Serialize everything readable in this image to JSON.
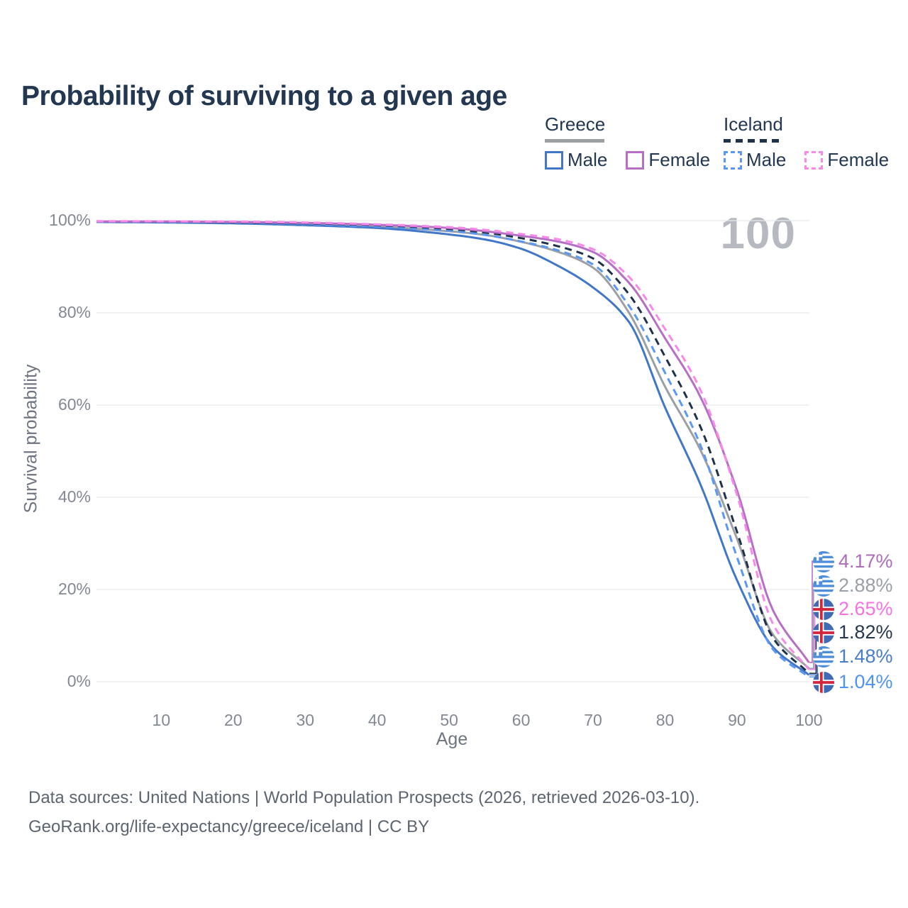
{
  "title": "Probability of surviving to a given age",
  "watermark": "100",
  "legend": {
    "greece": {
      "label": "Greece",
      "male": "Male",
      "female": "Female",
      "line_color": "#9ca0a5",
      "line_style": "solid"
    },
    "iceland": {
      "label": "Iceland",
      "male": "Male",
      "female": "Female",
      "line_color": "#203249",
      "line_style": "dashed"
    }
  },
  "chart_data": {
    "type": "line",
    "title": "Probability of surviving to a given age",
    "xlabel": "Age",
    "ylabel": "Survival probability",
    "xlim": [
      1,
      100
    ],
    "ylim": [
      0,
      100
    ],
    "grid": true,
    "legend_position": "top-right",
    "xtick_values": [
      10,
      20,
      30,
      40,
      50,
      60,
      70,
      80,
      90,
      100
    ],
    "xtick_labels": [
      "10",
      "20",
      "30",
      "40",
      "50",
      "60",
      "70",
      "80",
      "90",
      "100"
    ],
    "ytick_values": [
      0,
      20,
      40,
      60,
      80,
      100
    ],
    "ytick_labels": [
      "0%",
      "20%",
      "40%",
      "60%",
      "80%",
      "100%"
    ],
    "x": [
      1,
      10,
      20,
      30,
      40,
      50,
      55,
      60,
      65,
      70,
      75,
      80,
      85,
      90,
      95,
      100
    ],
    "series": [
      {
        "name": "Greece",
        "flag": "greece",
        "color": "#9ca0a5",
        "dash": false,
        "end_label": "2.88%",
        "label_color": "#9aa0a6",
        "values": [
          99.75,
          99.7,
          99.5,
          99.2,
          98.7,
          97.7,
          96.9,
          95.4,
          93.3,
          89.8,
          80.0,
          64.0,
          50.0,
          31.0,
          10.2,
          2.88
        ]
      },
      {
        "name": "Greece Male",
        "flag": "greece",
        "color": "#4277c7",
        "dash": false,
        "end_label": "1.48%",
        "label_color": "#4a7dc9",
        "values": [
          99.7,
          99.6,
          99.4,
          99.0,
          98.4,
          97.0,
          95.9,
          93.9,
          90.3,
          85.5,
          78.0,
          59.5,
          42.5,
          22.0,
          7.5,
          1.48
        ]
      },
      {
        "name": "Iceland Male",
        "flag": "iceland",
        "color": "#5b97f5",
        "dash": true,
        "end_label": "1.04%",
        "label_color": "#4f93f3",
        "values": [
          99.75,
          99.7,
          99.5,
          99.2,
          98.7,
          97.8,
          96.9,
          95.5,
          93.6,
          90.5,
          81.5,
          67.0,
          51.0,
          27.0,
          7.0,
          1.04
        ]
      },
      {
        "name": "Iceland",
        "flag": "iceland",
        "color": "#203249",
        "dash": true,
        "end_label": "1.82%",
        "label_color": "#28374e",
        "values": [
          99.85,
          99.8,
          99.6,
          99.4,
          99.0,
          98.2,
          97.4,
          96.2,
          94.5,
          91.8,
          84.0,
          70.5,
          55.0,
          32.5,
          9.5,
          1.82
        ]
      },
      {
        "name": "Greece Female",
        "flag": "greece",
        "color": "#b76fc6",
        "dash": false,
        "end_label": "4.17%",
        "label_color": "#ad6cbe",
        "values": [
          99.8,
          99.8,
          99.7,
          99.5,
          99.1,
          98.4,
          97.7,
          96.7,
          95.5,
          93.2,
          86.5,
          74.5,
          61.5,
          41.5,
          15.5,
          4.17
        ]
      },
      {
        "name": "Iceland Female",
        "flag": "iceland",
        "color": "#f78ae9",
        "dash": true,
        "end_label": "2.65%",
        "label_color": "#f672e3",
        "values": [
          99.9,
          99.85,
          99.8,
          99.6,
          99.2,
          98.6,
          98.0,
          97.1,
          96.0,
          93.8,
          87.8,
          76.5,
          63.0,
          40.5,
          12.5,
          2.65
        ]
      }
    ]
  },
  "footer": {
    "line1": "Data sources: United Nations | World Population Prospects (2026, retrieved 2026-03-10).",
    "line2": "GeoRank.org/life-expectancy/greece/iceland | CC BY"
  }
}
